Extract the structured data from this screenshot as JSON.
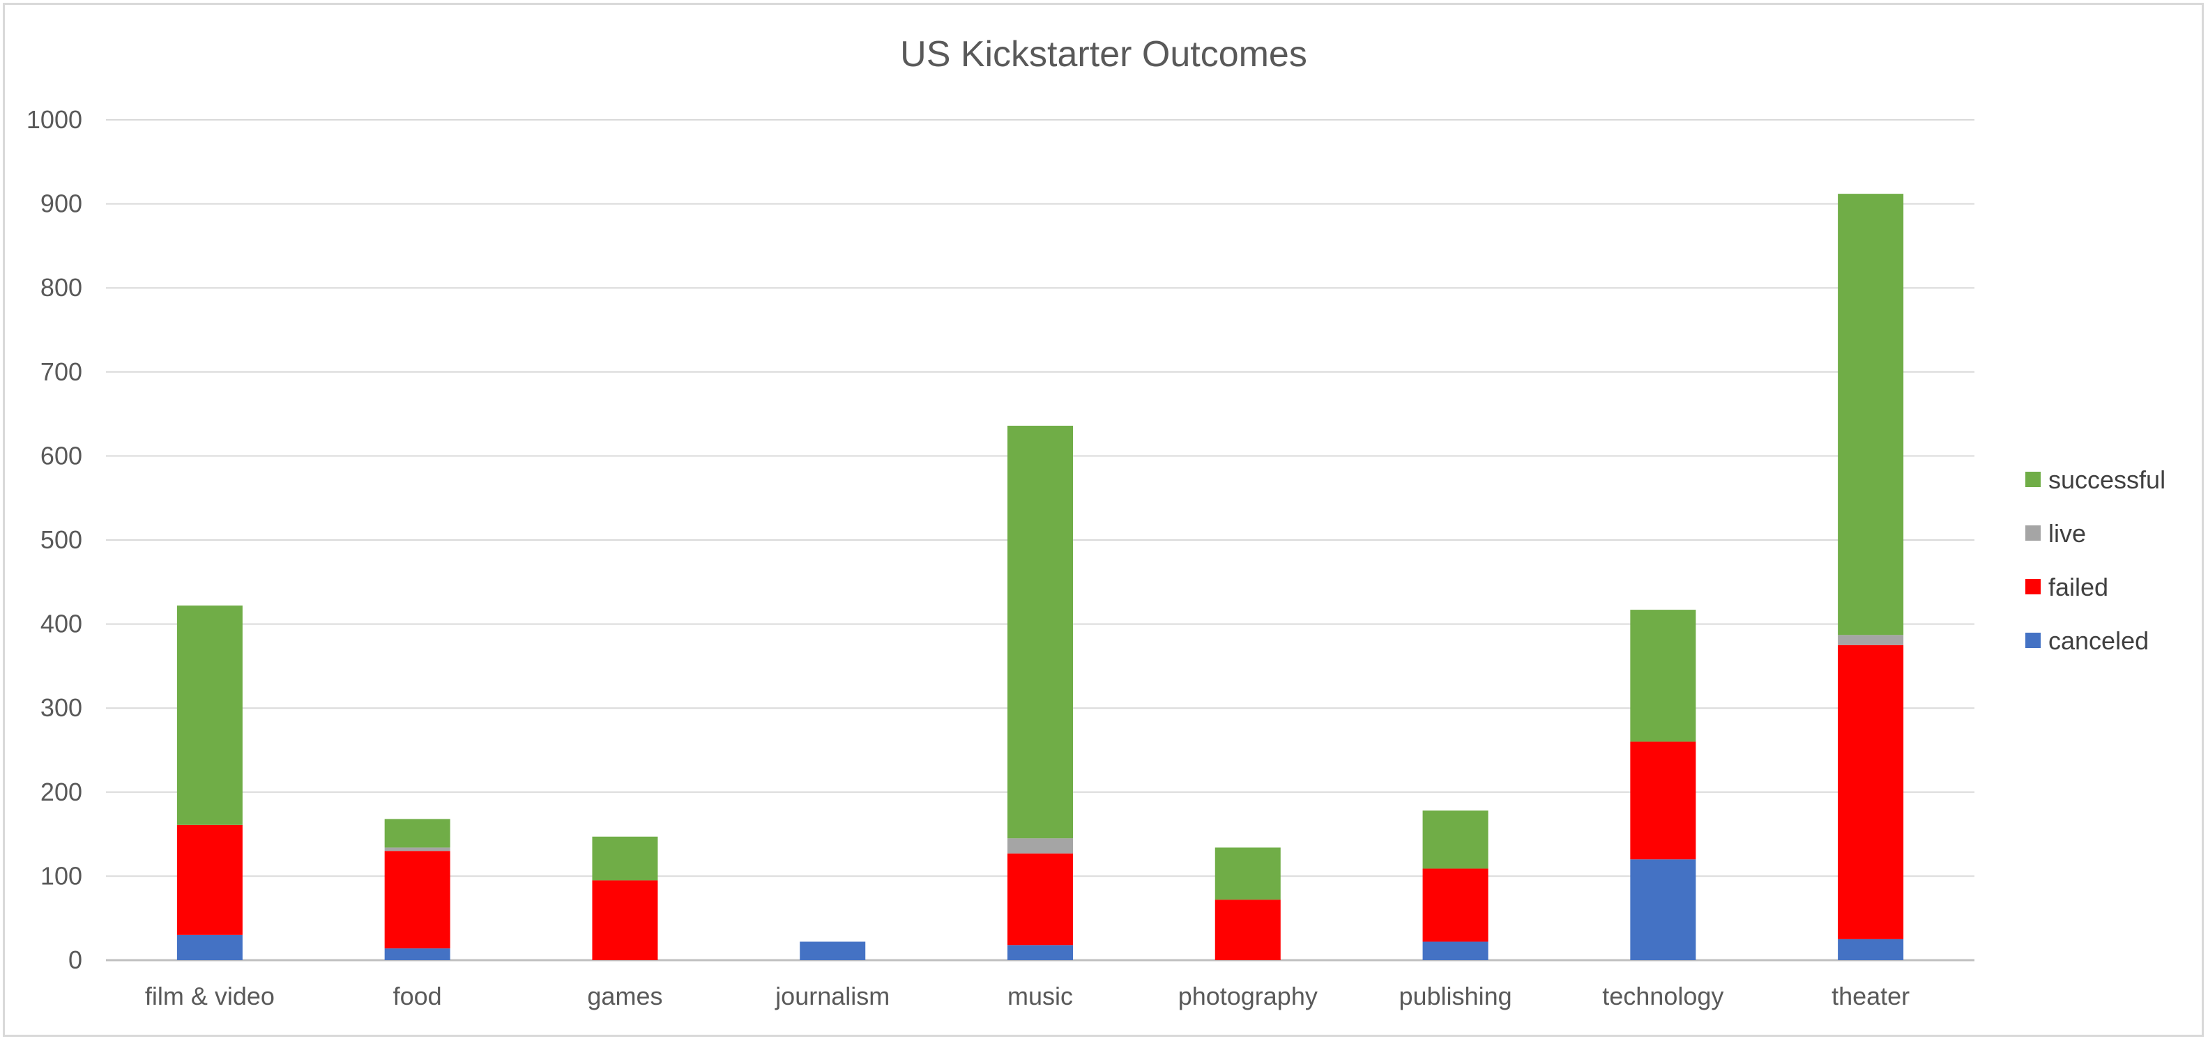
{
  "chart_data": {
    "type": "bar",
    "stacked": true,
    "title": "US Kickstarter Outcomes",
    "xlabel": "",
    "ylabel": "",
    "ylim": [
      0,
      1000
    ],
    "yticks": [
      "0",
      "100",
      "200",
      "300",
      "400",
      "500",
      "600",
      "700",
      "800",
      "900",
      "1000"
    ],
    "grid": true,
    "legend_position": "right",
    "categories": [
      "film & video",
      "food",
      "games",
      "journalism",
      "music",
      "photography",
      "publishing",
      "technology",
      "theater"
    ],
    "series": [
      {
        "name": "canceled",
        "color": "#4472C4",
        "values": [
          30,
          14,
          0,
          22,
          18,
          0,
          22,
          120,
          25
        ]
      },
      {
        "name": "failed",
        "color": "#FF0000",
        "values": [
          131,
          116,
          95,
          0,
          109,
          72,
          87,
          140,
          350
        ]
      },
      {
        "name": "live",
        "color": "#A5A5A5",
        "values": [
          0,
          4,
          0,
          0,
          18,
          0,
          0,
          0,
          12
        ]
      },
      {
        "name": "successful",
        "color": "#70AD47",
        "values": [
          261,
          34,
          52,
          0,
          491,
          62,
          69,
          157,
          525
        ]
      }
    ],
    "legend_order": [
      "successful",
      "live",
      "failed",
      "canceled"
    ]
  }
}
